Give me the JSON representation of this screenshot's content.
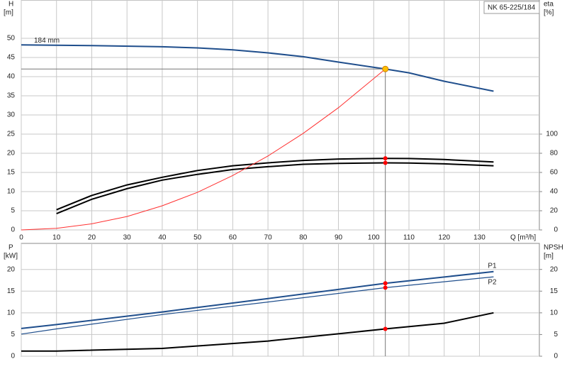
{
  "title": "NK 65-225/184",
  "chart_data": [
    {
      "type": "line",
      "xlabel": "Q [m³/h]",
      "ylabel": "H",
      "yunit": "[m]",
      "y2label": "eta",
      "y2unit": "[%]",
      "xlim": [
        0,
        147
      ],
      "xticks": [
        0,
        10,
        20,
        30,
        40,
        50,
        60,
        70,
        80,
        90,
        100,
        110,
        120,
        130
      ],
      "ylim": [
        0,
        60
      ],
      "yticks": [
        0,
        5,
        10,
        15,
        20,
        25,
        30,
        35,
        40,
        45,
        50
      ],
      "y2lim": [
        0,
        240
      ],
      "y2ticks": [
        0,
        20,
        40,
        60,
        80,
        100
      ],
      "grid": true,
      "highlight_x": 103.3,
      "series": [
        {
          "name": "184 mm",
          "color": "#1f4e8c",
          "x": [
            0,
            20,
            40,
            50,
            60,
            70,
            80,
            90,
            103.3,
            110,
            120,
            134
          ],
          "values": [
            48.3,
            48.1,
            47.8,
            47.5,
            47.0,
            46.2,
            45.2,
            43.8,
            42.0,
            41.0,
            38.8,
            36.2
          ]
        },
        {
          "color": "#000000",
          "axis": "y2",
          "x": [
            10,
            20,
            30,
            40,
            50,
            60,
            70,
            80,
            90,
            103.3,
            110,
            120,
            134
          ],
          "values": [
            21,
            36,
            47,
            55,
            62,
            67,
            70,
            72.5,
            74,
            74.7,
            74.5,
            73.5,
            71
          ]
        },
        {
          "color": "#000000",
          "axis": "y2",
          "x": [
            10,
            20,
            30,
            40,
            50,
            60,
            70,
            80,
            90,
            103.3,
            110,
            120,
            134
          ],
          "values": [
            17,
            32,
            43,
            52,
            58,
            63,
            66,
            68.5,
            69.5,
            70,
            69.8,
            69,
            67
          ]
        },
        {
          "color": "#ff3030",
          "x": [
            0,
            10,
            20,
            30,
            40,
            50,
            60,
            70,
            80,
            90,
            103.3
          ],
          "values": [
            0,
            0.4,
            1.6,
            3.5,
            6.3,
            9.8,
            14.2,
            19.3,
            25.2,
            31.9,
            42.0
          ]
        }
      ]
    },
    {
      "type": "line",
      "ylabel": "P",
      "yunit": "[kW]",
      "y2label": "NPSH",
      "y2unit": "[m]",
      "xlim": [
        0,
        147
      ],
      "xticks": [
        0,
        10,
        20,
        30,
        40,
        50,
        60,
        70,
        80,
        90,
        100,
        110,
        120,
        130
      ],
      "ylim": [
        0,
        26
      ],
      "yticks": [
        0,
        5,
        10,
        15,
        20
      ],
      "y2lim": [
        0,
        26
      ],
      "y2ticks": [
        0,
        5,
        10,
        15,
        20
      ],
      "grid": true,
      "highlight_x": 103.3,
      "series": [
        {
          "name": "P1",
          "color": "#1f4e8c",
          "x": [
            0,
            10,
            40,
            70,
            103.3,
            134
          ],
          "values": [
            6.4,
            7.3,
            10.2,
            13.3,
            16.8,
            19.5
          ]
        },
        {
          "name": "P2",
          "color": "#1f4e8c",
          "x": [
            0,
            10,
            40,
            70,
            103.3,
            134
          ],
          "values": [
            5.1,
            6.3,
            9.6,
            12.5,
            15.8,
            18.3
          ]
        },
        {
          "color": "#000000",
          "axis": "y2",
          "x": [
            0,
            10,
            40,
            70,
            103.3,
            120,
            134
          ],
          "values": [
            1.2,
            1.2,
            1.8,
            3.5,
            6.3,
            7.6,
            10
          ]
        }
      ]
    }
  ]
}
